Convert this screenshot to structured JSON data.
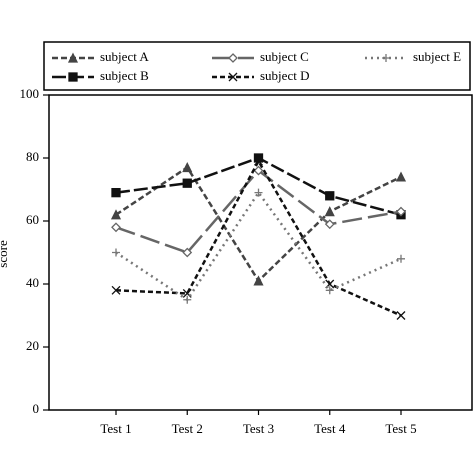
{
  "chart_data": {
    "type": "line",
    "categories": [
      "Test 1",
      "Test 2",
      "Test 3",
      "Test 4",
      "Test 5"
    ],
    "ylabel": "score",
    "ylim": [
      0,
      100
    ],
    "yticks": [
      0,
      20,
      40,
      60,
      80,
      100
    ],
    "series": [
      {
        "name": "subject A",
        "color": "#444444",
        "marker": "triangle",
        "dash": "6,3",
        "values": [
          62,
          77,
          41,
          63,
          74
        ]
      },
      {
        "name": "subject B",
        "color": "#111111",
        "marker": "square",
        "dash": "14,4",
        "values": [
          69,
          72,
          80,
          68,
          62
        ]
      },
      {
        "name": "subject C",
        "color": "#666666",
        "marker": "diamond",
        "dash": "20,6",
        "values": [
          58,
          50,
          76,
          59,
          63
        ]
      },
      {
        "name": "subject D",
        "color": "#111111",
        "marker": "cross",
        "dash": "5,3",
        "values": [
          38,
          37,
          79,
          40,
          30
        ]
      },
      {
        "name": "subject E",
        "color": "#777777",
        "marker": "plus",
        "dash": "2,4",
        "values": [
          50,
          35,
          69,
          38,
          48
        ]
      }
    ]
  }
}
